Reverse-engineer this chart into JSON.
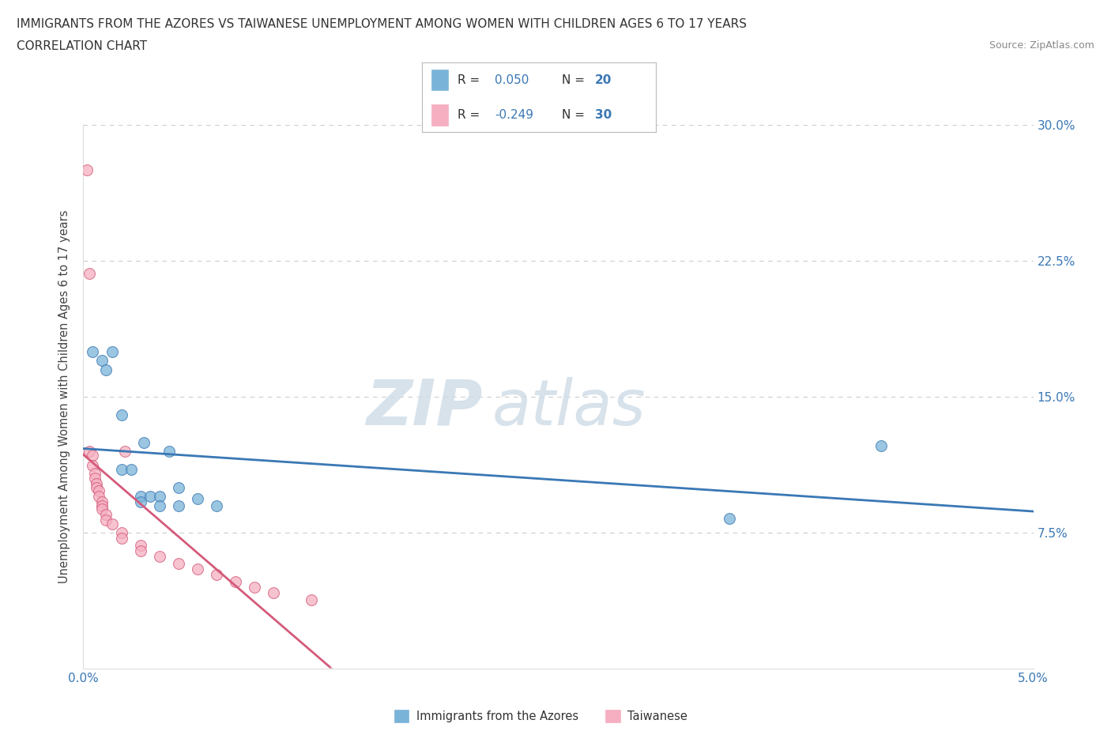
{
  "title_line1": "IMMIGRANTS FROM THE AZORES VS TAIWANESE UNEMPLOYMENT AMONG WOMEN WITH CHILDREN AGES 6 TO 17 YEARS",
  "title_line2": "CORRELATION CHART",
  "source": "Source: ZipAtlas.com",
  "ylabel": "Unemployment Among Women with Children Ages 6 to 17 years",
  "watermark_zip": "ZIP",
  "watermark_atlas": "atlas",
  "xlim": [
    0.0,
    0.05
  ],
  "ylim": [
    0.0,
    0.3
  ],
  "x_ticks": [
    0.0,
    0.01,
    0.02,
    0.03,
    0.04,
    0.05
  ],
  "x_tick_labels": [
    "0.0%",
    "",
    "",
    "",
    "",
    "5.0%"
  ],
  "y_ticks": [
    0.0,
    0.075,
    0.15,
    0.225,
    0.3
  ],
  "y_tick_labels_right": [
    "",
    "7.5%",
    "15.0%",
    "22.5%",
    "30.0%"
  ],
  "azores_points": [
    [
      0.0005,
      0.175
    ],
    [
      0.001,
      0.17
    ],
    [
      0.0012,
      0.165
    ],
    [
      0.0015,
      0.175
    ],
    [
      0.002,
      0.14
    ],
    [
      0.002,
      0.11
    ],
    [
      0.0025,
      0.11
    ],
    [
      0.003,
      0.095
    ],
    [
      0.003,
      0.092
    ],
    [
      0.0032,
      0.125
    ],
    [
      0.0035,
      0.095
    ],
    [
      0.004,
      0.095
    ],
    [
      0.004,
      0.09
    ],
    [
      0.0045,
      0.12
    ],
    [
      0.005,
      0.1
    ],
    [
      0.005,
      0.09
    ],
    [
      0.006,
      0.094
    ],
    [
      0.007,
      0.09
    ],
    [
      0.034,
      0.083
    ],
    [
      0.042,
      0.123
    ]
  ],
  "taiwanese_points": [
    [
      0.0002,
      0.275
    ],
    [
      0.0003,
      0.218
    ],
    [
      0.0003,
      0.12
    ],
    [
      0.0005,
      0.118
    ],
    [
      0.0005,
      0.112
    ],
    [
      0.0006,
      0.108
    ],
    [
      0.0006,
      0.105
    ],
    [
      0.0007,
      0.102
    ],
    [
      0.0007,
      0.1
    ],
    [
      0.0008,
      0.098
    ],
    [
      0.0008,
      0.095
    ],
    [
      0.001,
      0.092
    ],
    [
      0.001,
      0.09
    ],
    [
      0.001,
      0.088
    ],
    [
      0.0012,
      0.085
    ],
    [
      0.0012,
      0.082
    ],
    [
      0.0015,
      0.08
    ],
    [
      0.002,
      0.075
    ],
    [
      0.002,
      0.072
    ],
    [
      0.0022,
      0.12
    ],
    [
      0.003,
      0.068
    ],
    [
      0.003,
      0.065
    ],
    [
      0.004,
      0.062
    ],
    [
      0.005,
      0.058
    ],
    [
      0.006,
      0.055
    ],
    [
      0.007,
      0.052
    ],
    [
      0.008,
      0.048
    ],
    [
      0.009,
      0.045
    ],
    [
      0.01,
      0.042
    ],
    [
      0.012,
      0.038
    ]
  ],
  "azores_color": "#7ab3d8",
  "taiwanese_color": "#f5afc0",
  "azores_line_color": "#3a78b5",
  "taiwanese_line_color": "#d45a7a",
  "taiwanese_line_dashed_color": "#e8aabb",
  "background_color": "#ffffff"
}
